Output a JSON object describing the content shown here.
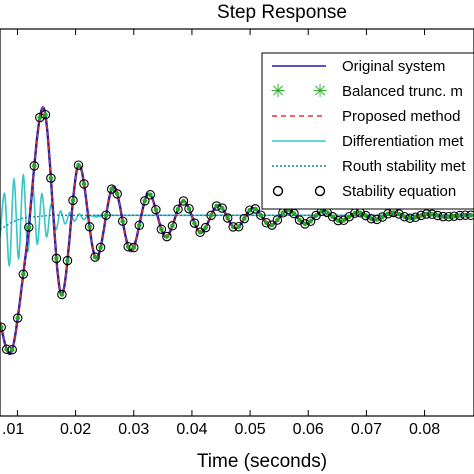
{
  "chart_data": {
    "type": "line",
    "title": "Step Response",
    "xlabel": "Time (seconds)",
    "ylabel": "",
    "xlim": [
      0.007,
      0.0885
    ],
    "ylim": [
      -0.3,
      2.4
    ],
    "xticks": [
      0.01,
      0.02,
      0.03,
      0.04,
      0.05,
      0.06,
      0.07,
      0.08
    ],
    "xtick_labels": [
      ".01",
      "0.02",
      "0.03",
      "0.04",
      "0.05",
      "0.06",
      "0.07",
      "0.08"
    ],
    "legend_position": "top-right",
    "series": [
      {
        "name": "Original system",
        "color": "#1f1fa8",
        "style": "solid",
        "x": [
          0.007,
          0.009,
          0.0115,
          0.0145,
          0.0175,
          0.0205,
          0.0235,
          0.0265,
          0.0295,
          0.0325,
          0.0355,
          0.0385,
          0.0415,
          0.0445,
          0.0475,
          0.0505,
          0.0535,
          0.0565,
          0.0595,
          0.0625,
          0.0655,
          0.0685,
          0.0715,
          0.0745,
          0.0775,
          0.0805,
          0.0835,
          0.0865,
          0.0885
        ],
        "y": [
          0.35,
          0.15,
          0.85,
          1.85,
          0.55,
          1.45,
          0.8,
          1.3,
          0.85,
          1.25,
          0.95,
          1.2,
          0.98,
          1.17,
          1.01,
          1.15,
          1.03,
          1.14,
          1.04,
          1.13,
          1.06,
          1.12,
          1.07,
          1.12,
          1.08,
          1.11,
          1.09,
          1.1,
          1.1
        ]
      },
      {
        "name": "Balanced trunc. m",
        "color": "#22aa22",
        "style": "star"
      },
      {
        "name": "Proposed method",
        "color": "#e8312a",
        "style": "dashed"
      },
      {
        "name": "Differentiation met",
        "color": "#38c5c5",
        "style": "solid",
        "x": [
          0.007,
          0.0078,
          0.0086,
          0.0094,
          0.0102,
          0.011,
          0.0118,
          0.0126,
          0.0134,
          0.0142,
          0.015,
          0.0158,
          0.0166,
          0.0174,
          0.0182,
          0.019,
          0.0198,
          0.0206,
          0.0214,
          0.0222,
          0.0235,
          0.025,
          0.0265,
          0.028,
          0.0885
        ],
        "y": [
          0.95,
          1.25,
          0.75,
          1.35,
          0.8,
          1.38,
          0.85,
          1.32,
          0.9,
          1.25,
          0.95,
          1.18,
          1.0,
          1.13,
          1.04,
          1.12,
          1.06,
          1.11,
          1.07,
          1.1,
          1.09,
          1.1,
          1.1,
          1.1,
          1.1
        ]
      },
      {
        "name": "Routh stability met",
        "color": "#1a7fb0",
        "style": "dotted",
        "x": [
          0.007,
          0.009,
          0.011,
          0.013,
          0.016,
          0.02,
          0.025,
          0.03,
          0.0885
        ],
        "y": [
          1.0,
          1.05,
          1.08,
          1.09,
          1.1,
          1.1,
          1.1,
          1.1,
          1.1
        ]
      },
      {
        "name": "Stability equation",
        "color": "#000000",
        "style": "circle"
      }
    ]
  }
}
